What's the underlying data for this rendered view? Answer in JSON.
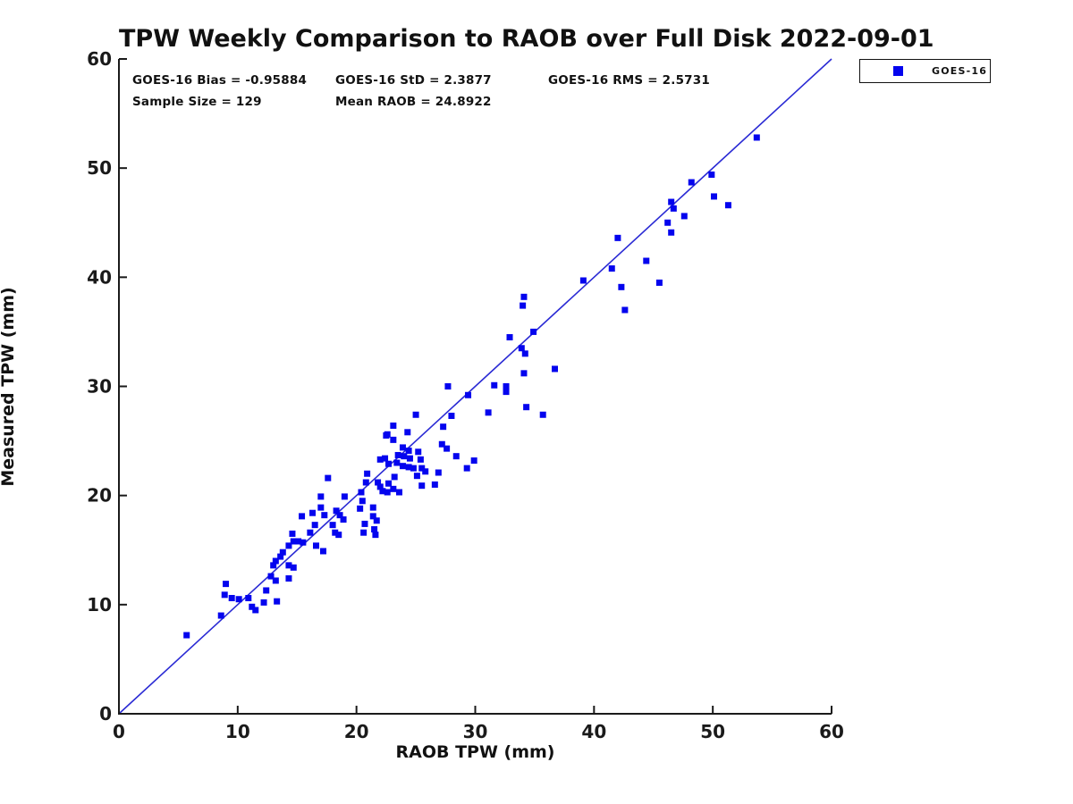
{
  "title": "TPW Weekly Comparison to RAOB over Full Disk 2022-09-01",
  "stats": {
    "bias": "GOES-16 Bias = -0.95884",
    "std": "GOES-16 StD = 2.3877",
    "rms": "GOES-16 RMS = 2.5731",
    "sample_size": "Sample Size = 129",
    "mean_raob": "Mean RAOB = 24.8922"
  },
  "legend": {
    "label": "GOES-16",
    "marker_color": "#0404ee"
  },
  "colors": {
    "marker": "#0404ee",
    "reference_line": "#2a2ad4",
    "axis": "#1a1a1a",
    "text": "#111111",
    "background": "#ffffff"
  },
  "chart_data": {
    "type": "scatter",
    "title": "TPW Weekly Comparison to RAOB over Full Disk 2022-09-01",
    "xlabel": "RAOB TPW (mm)",
    "ylabel": "Measured TPW (mm)",
    "xlim": [
      0,
      60
    ],
    "ylim": [
      0,
      60
    ],
    "x_ticks": [
      0,
      10,
      20,
      30,
      40,
      50,
      60
    ],
    "y_ticks": [
      0,
      10,
      20,
      30,
      40,
      50,
      60
    ],
    "grid": false,
    "tick_direction": "in",
    "legend_position": "outside-top-right",
    "reference_line": {
      "from": [
        0,
        0
      ],
      "to": [
        60,
        60
      ],
      "style": "solid",
      "meaning": "1:1 line"
    },
    "annotations": [
      "GOES-16 Bias = -0.95884",
      "GOES-16 StD = 2.3877",
      "GOES-16 RMS = 2.5731",
      "Sample Size = 129",
      "Mean RAOB = 24.8922"
    ],
    "series": [
      {
        "name": "GOES-16",
        "marker": "square",
        "color": "#0404ee",
        "points": [
          [
            5.7,
            7.2
          ],
          [
            8.6,
            9.0
          ],
          [
            8.9,
            10.9
          ],
          [
            9.0,
            11.9
          ],
          [
            9.5,
            10.6
          ],
          [
            10.1,
            10.5
          ],
          [
            10.9,
            10.6
          ],
          [
            11.2,
            9.8
          ],
          [
            11.5,
            9.5
          ],
          [
            12.2,
            10.2
          ],
          [
            12.4,
            11.3
          ],
          [
            12.8,
            12.6
          ],
          [
            13.0,
            13.6
          ],
          [
            13.2,
            12.2
          ],
          [
            13.2,
            14.0
          ],
          [
            13.3,
            10.3
          ],
          [
            13.6,
            14.4
          ],
          [
            13.8,
            14.8
          ],
          [
            14.3,
            12.4
          ],
          [
            14.3,
            13.6
          ],
          [
            14.3,
            15.4
          ],
          [
            14.6,
            16.5
          ],
          [
            14.7,
            13.4
          ],
          [
            14.7,
            15.8
          ],
          [
            15.1,
            15.8
          ],
          [
            15.4,
            18.1
          ],
          [
            15.5,
            15.7
          ],
          [
            16.1,
            16.6
          ],
          [
            16.3,
            18.4
          ],
          [
            16.5,
            17.3
          ],
          [
            16.6,
            15.4
          ],
          [
            17.0,
            18.9
          ],
          [
            17.0,
            19.9
          ],
          [
            17.2,
            14.9
          ],
          [
            17.3,
            18.2
          ],
          [
            17.6,
            21.6
          ],
          [
            18.0,
            17.3
          ],
          [
            18.2,
            16.6
          ],
          [
            18.3,
            18.6
          ],
          [
            18.5,
            16.4
          ],
          [
            18.6,
            18.2
          ],
          [
            18.9,
            17.8
          ],
          [
            19.0,
            19.9
          ],
          [
            20.3,
            18.8
          ],
          [
            20.4,
            20.3
          ],
          [
            20.5,
            19.5
          ],
          [
            20.6,
            16.6
          ],
          [
            20.7,
            17.4
          ],
          [
            20.8,
            21.2
          ],
          [
            20.9,
            22.0
          ],
          [
            21.4,
            18.1
          ],
          [
            21.4,
            18.9
          ],
          [
            21.5,
            16.9
          ],
          [
            21.6,
            16.4
          ],
          [
            21.7,
            17.7
          ],
          [
            21.8,
            21.2
          ],
          [
            22.0,
            20.8
          ],
          [
            22.0,
            23.3
          ],
          [
            22.2,
            20.4
          ],
          [
            22.4,
            23.4
          ],
          [
            22.5,
            25.5
          ],
          [
            22.6,
            20.3
          ],
          [
            22.6,
            25.6
          ],
          [
            22.7,
            21.1
          ],
          [
            22.7,
            22.9
          ],
          [
            23.1,
            20.6
          ],
          [
            23.1,
            25.1
          ],
          [
            23.1,
            26.4
          ],
          [
            23.2,
            21.7
          ],
          [
            23.4,
            23.0
          ],
          [
            23.5,
            23.7
          ],
          [
            23.6,
            20.3
          ],
          [
            23.9,
            22.7
          ],
          [
            23.9,
            24.4
          ],
          [
            24.0,
            23.6
          ],
          [
            24.3,
            25.8
          ],
          [
            24.4,
            22.6
          ],
          [
            24.4,
            24.1
          ],
          [
            24.5,
            23.4
          ],
          [
            24.8,
            22.5
          ],
          [
            25.0,
            27.4
          ],
          [
            25.1,
            21.8
          ],
          [
            25.2,
            24.0
          ],
          [
            25.4,
            23.3
          ],
          [
            25.5,
            20.9
          ],
          [
            25.5,
            22.5
          ],
          [
            25.8,
            22.2
          ],
          [
            26.6,
            21.0
          ],
          [
            26.9,
            22.1
          ],
          [
            27.2,
            24.7
          ],
          [
            27.3,
            26.3
          ],
          [
            27.6,
            24.3
          ],
          [
            27.7,
            30.0
          ],
          [
            28.0,
            27.3
          ],
          [
            28.4,
            23.6
          ],
          [
            29.3,
            22.5
          ],
          [
            29.4,
            29.2
          ],
          [
            29.9,
            23.2
          ],
          [
            31.1,
            27.6
          ],
          [
            31.6,
            30.1
          ],
          [
            32.6,
            29.5
          ],
          [
            32.6,
            30.0
          ],
          [
            32.9,
            34.5
          ],
          [
            33.9,
            33.5
          ],
          [
            34.0,
            37.4
          ],
          [
            34.1,
            31.2
          ],
          [
            34.1,
            38.2
          ],
          [
            34.2,
            33.0
          ],
          [
            34.3,
            28.1
          ],
          [
            34.9,
            35.0
          ],
          [
            35.7,
            27.4
          ],
          [
            36.7,
            31.6
          ],
          [
            39.1,
            39.7
          ],
          [
            41.5,
            40.8
          ],
          [
            42.0,
            43.6
          ],
          [
            42.3,
            39.1
          ],
          [
            42.6,
            37.0
          ],
          [
            44.4,
            41.5
          ],
          [
            45.5,
            39.5
          ],
          [
            46.2,
            45.0
          ],
          [
            46.5,
            44.1
          ],
          [
            46.5,
            46.9
          ],
          [
            46.7,
            46.3
          ],
          [
            47.6,
            45.6
          ],
          [
            48.2,
            48.7
          ],
          [
            49.9,
            49.4
          ],
          [
            50.1,
            47.4
          ],
          [
            51.3,
            46.6
          ],
          [
            53.7,
            52.8
          ]
        ]
      }
    ]
  }
}
